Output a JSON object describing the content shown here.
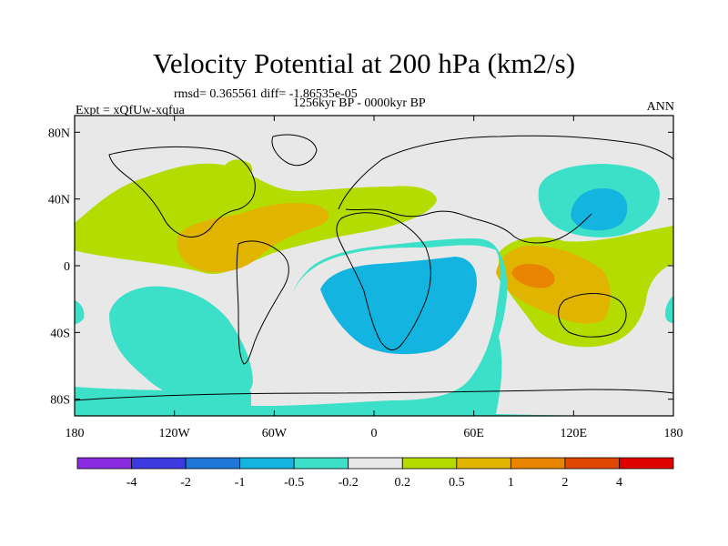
{
  "title": "Velocity Potential at 200 hPa (km2/s)",
  "stats_line": "rmsd= 0.365561 diff= -1.86535e-05",
  "period_line": "1256kyr BP - 0000kyr BP",
  "experiment_line": "Expt = xQfUw-xqfua",
  "season_label": "ANN",
  "map": {
    "projection": "cylindrical equidistant",
    "lon_range": [
      -180,
      180
    ],
    "lat_range": [
      -90,
      90
    ],
    "y_ticks": [
      {
        "value": 80,
        "label": "80N"
      },
      {
        "value": 40,
        "label": "40N"
      },
      {
        "value": 0,
        "label": "0"
      },
      {
        "value": -40,
        "label": "40S"
      },
      {
        "value": -80,
        "label": "80S"
      }
    ],
    "x_ticks": [
      {
        "value": -180,
        "label": "180"
      },
      {
        "value": -120,
        "label": "120W"
      },
      {
        "value": -60,
        "label": "60W"
      },
      {
        "value": 0,
        "label": "0"
      },
      {
        "value": 60,
        "label": "60E"
      },
      {
        "value": 120,
        "label": "120E"
      },
      {
        "value": 180,
        "label": "180"
      }
    ],
    "background_color": "#e8e8e8",
    "coastline_color": "#000000"
  },
  "colorbar": {
    "labels": [
      "-4",
      "-2",
      "-1",
      "-0.5",
      "-0.2",
      "0.2",
      "0.5",
      "1",
      "2",
      "4"
    ],
    "colors": [
      "#8a2be2",
      "#3a3ae0",
      "#1e78d8",
      "#14b4e0",
      "#3ce0c8",
      "#e8e8e8",
      "#b4dc00",
      "#e0b400",
      "#e88400",
      "#e04800",
      "#e00000"
    ]
  }
}
